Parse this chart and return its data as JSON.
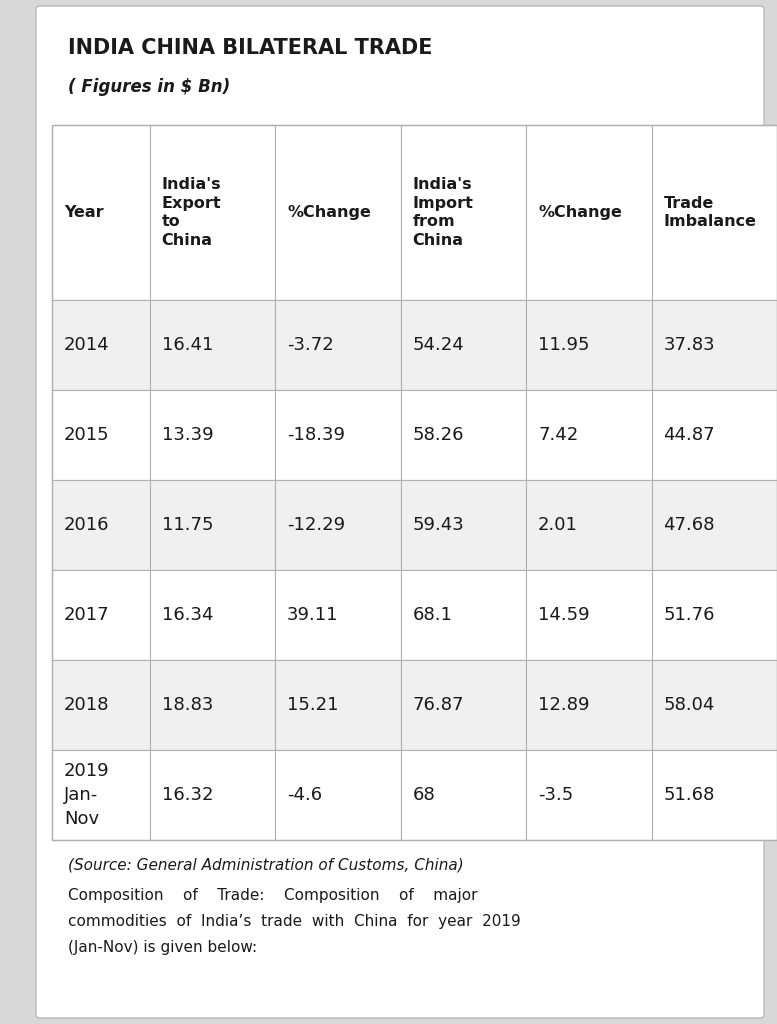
{
  "title1": "INDIA CHINA BILATERAL TRADE",
  "title2": "( Figures in $ Bn)",
  "col_headers": [
    "Year",
    "India's\nExport\nto\nChina",
    "%Change",
    "India's\nImport\nfrom\nChina",
    "%Change",
    "Trade\nImbalance"
  ],
  "rows": [
    [
      "2014",
      "16.41",
      "-3.72",
      "54.24",
      "11.95",
      "37.83"
    ],
    [
      "2015",
      "13.39",
      "-18.39",
      "58.26",
      "7.42",
      "44.87"
    ],
    [
      "2016",
      "11.75",
      "-12.29",
      "59.43",
      "2.01",
      "47.68"
    ],
    [
      "2017",
      "16.34",
      "39.11",
      "68.1",
      "14.59",
      "51.76"
    ],
    [
      "2018",
      "18.83",
      "15.21",
      "76.87",
      "12.89",
      "58.04"
    ],
    [
      "2019\nJan-\nNov",
      "16.32",
      "-4.6",
      "68",
      "-3.5",
      "51.68"
    ]
  ],
  "footer_line1": "(Source: General Administration of Customs, China)",
  "footer_lines": [
    "Composition    of    Trade:    Composition    of    major",
    "commodities  of  India’s  trade  with  China  for  year  2019",
    "(Jan-Nov) is given below:"
  ],
  "bg_color": "#ffffff",
  "header_bg": "#ffffff",
  "row_bg_odd": "#f0f0f0",
  "row_bg_even": "#ffffff",
  "border_color": "#b0b0b0",
  "text_color": "#1a1a1a",
  "outer_bg": "#d8d8d8",
  "title1_fontsize": 15,
  "title2_fontsize": 12,
  "header_fontsize": 11.5,
  "cell_fontsize": 13,
  "footer_fontsize": 11
}
